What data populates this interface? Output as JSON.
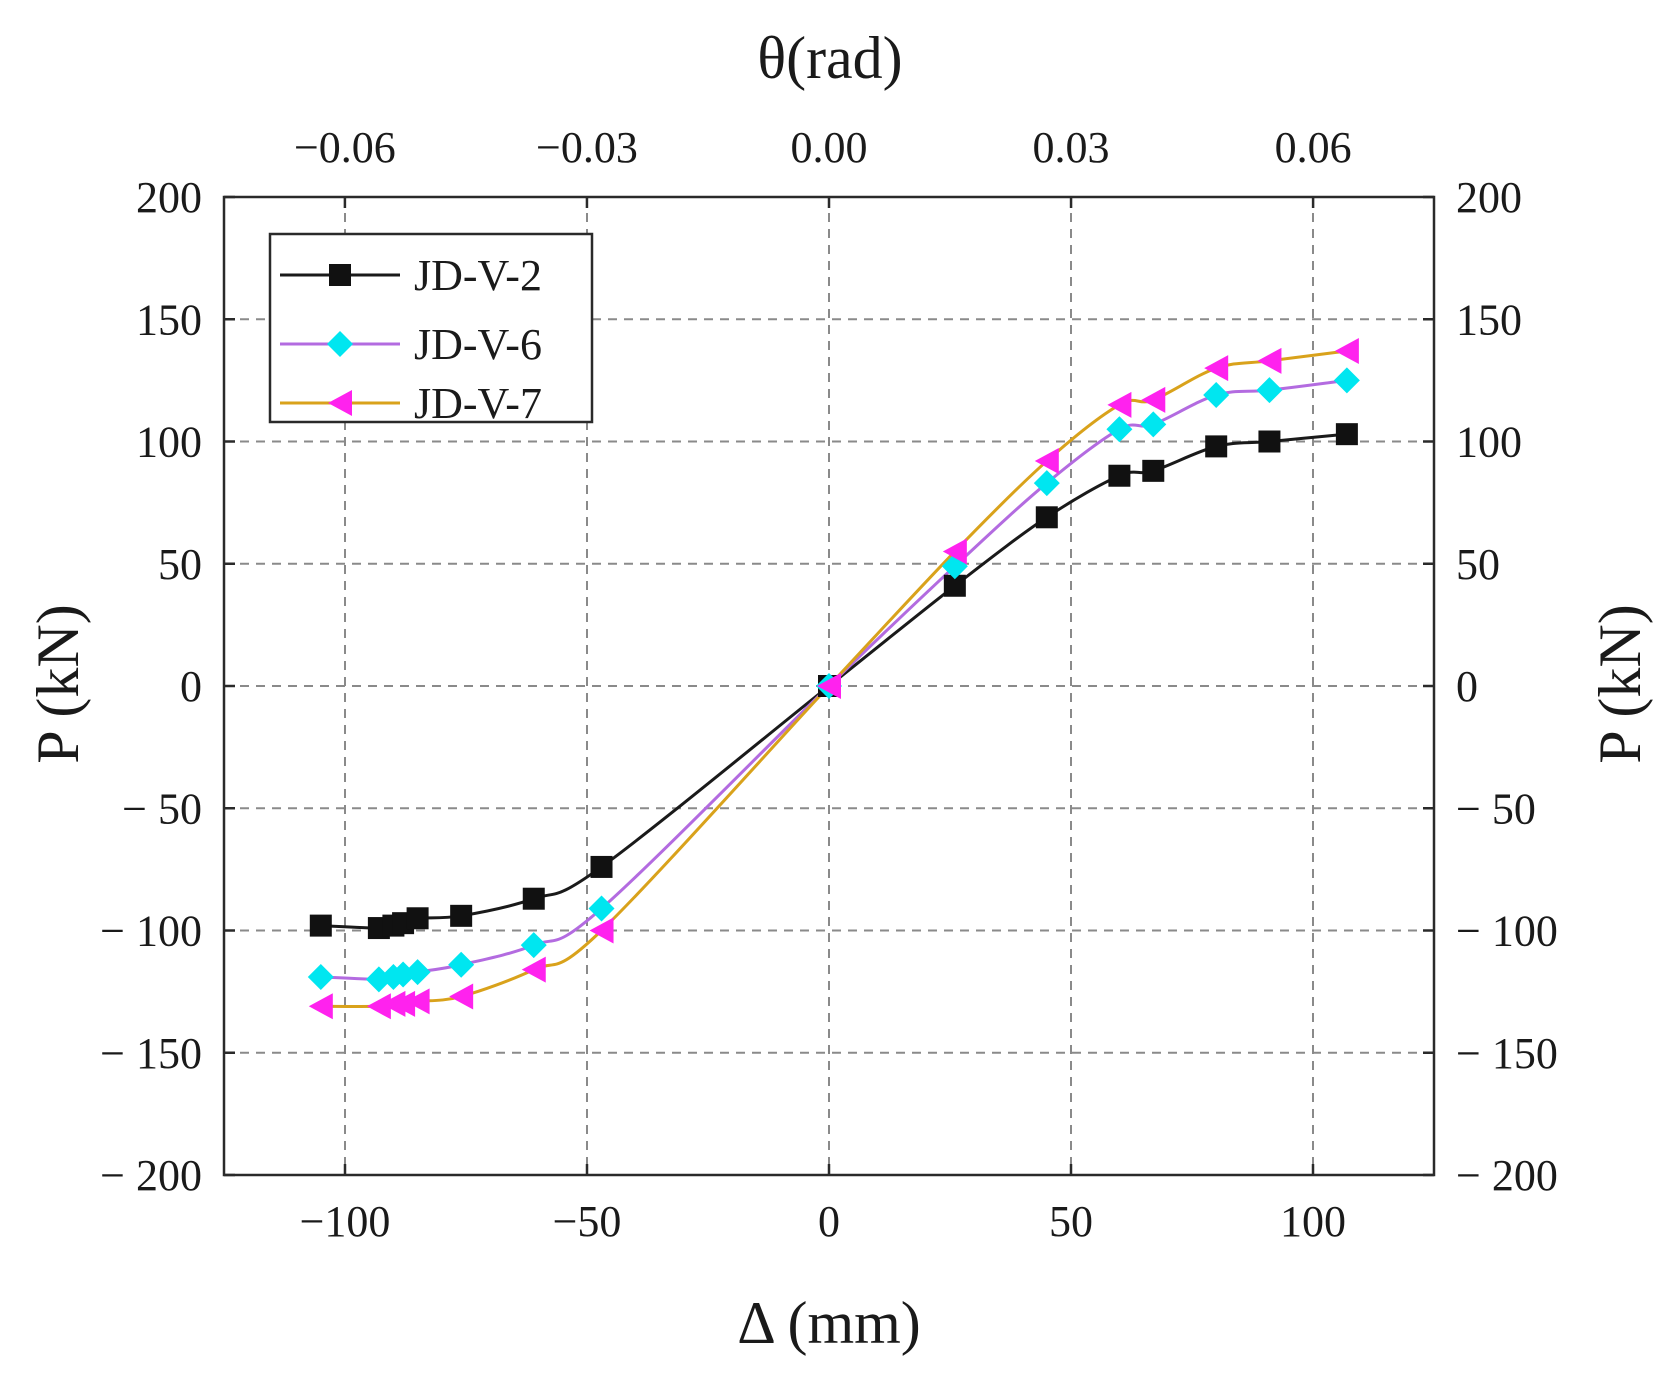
{
  "chart_data": {
    "type": "line",
    "title": "",
    "xlabel": "Δ (mm)",
    "ylabel_left": "P (kN)",
    "ylabel_right": "P (kN)",
    "top_xlabel": "θ(rad)",
    "xlim": [
      -125,
      125
    ],
    "ylim": [
      -200,
      200
    ],
    "x_ticks": [
      -100,
      -50,
      0,
      50,
      100
    ],
    "x_tick_labels": [
      "−100",
      "−50",
      "0",
      "50",
      "100"
    ],
    "y_ticks": [
      200,
      150,
      100,
      50,
      0,
      -50,
      -100,
      -150,
      -200
    ],
    "y_tick_labels": [
      "200",
      "150",
      "100",
      "50",
      "0",
      "− 50",
      "− 100",
      "− 150",
      "− 200"
    ],
    "top_ticks": [
      -0.06,
      -0.03,
      0.0,
      0.03,
      0.06
    ],
    "top_tick_labels": [
      "−0.06",
      "−0.03",
      "0.00",
      "0.03",
      "0.06"
    ],
    "top_scale_mm_per_rad": 1667,
    "grid": true,
    "legend_position": "top-left",
    "series": [
      {
        "name": "JD-V-2",
        "color": "#111111",
        "line_color": "#1a1a1a",
        "marker": "square",
        "x": [
          -105,
          -93,
          -90,
          -88,
          -85,
          -76,
          -61,
          -47,
          0,
          26,
          45,
          60,
          67,
          80,
          91,
          107
        ],
        "y": [
          -98,
          -99,
          -98,
          -97,
          -95,
          -94,
          -87,
          -74,
          0,
          41,
          69,
          86,
          88,
          98,
          100,
          103
        ]
      },
      {
        "name": "JD-V-6",
        "color": "#00e6f0",
        "line_color": "#b36be0",
        "marker": "diamond",
        "x": [
          -105,
          -93,
          -90,
          -88,
          -85,
          -76,
          -61,
          -47,
          0,
          26,
          45,
          60,
          67,
          80,
          91,
          107
        ],
        "y": [
          -119,
          -120,
          -119,
          -118,
          -117,
          -114,
          -106,
          -91,
          0,
          49,
          83,
          105,
          107,
          119,
          121,
          125
        ]
      },
      {
        "name": "JD-V-7",
        "color": "#ff22ee",
        "line_color": "#d9a21b",
        "marker": "triangle-left",
        "x": [
          -105,
          -93,
          -90,
          -88,
          -85,
          -76,
          -61,
          -47,
          0,
          26,
          45,
          60,
          67,
          80,
          91,
          107
        ],
        "y": [
          -131,
          -131,
          -130,
          -130,
          -129,
          -127,
          -116,
          -100,
          0,
          55,
          92,
          115,
          117,
          130,
          133,
          137
        ]
      }
    ]
  }
}
